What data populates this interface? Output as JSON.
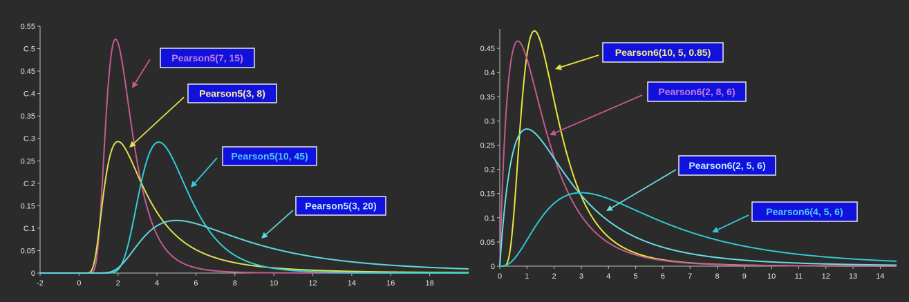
{
  "chart_data": [
    {
      "type": "line",
      "xlim": [
        -2,
        20
      ],
      "ylim": [
        0,
        0.55
      ],
      "x_ticks": [
        "-2",
        "0",
        "2",
        "4",
        "6",
        "8",
        "10",
        "12",
        "14",
        "16",
        "18"
      ],
      "y_ticks": [
        "0",
        "0.05",
        "C.1",
        "0.15",
        "C.2",
        "0.25",
        "C.3",
        "0.35",
        "C.4",
        "0.45",
        "C.5",
        "0.55"
      ],
      "grid": false,
      "series": [
        {
          "name": "Pearson5(7, 15)",
          "dist": "pearson5",
          "params": [
            7,
            15
          ],
          "color": "#c45a92",
          "label_text": "#c37ee8"
        },
        {
          "name": "Pearson5(3, 8)",
          "dist": "pearson5",
          "params": [
            3,
            8
          ],
          "color": "#e0e050",
          "label_text": "#fff1a0"
        },
        {
          "name": "Pearson5(10, 45)",
          "dist": "pearson5",
          "params": [
            10,
            45
          ],
          "color": "#30d0d8",
          "label_text": "#4ec8ff"
        },
        {
          "name": "Pearson5(3, 20)",
          "dist": "pearson5",
          "params": [
            3,
            20
          ],
          "color": "#60d8dc",
          "label_text": "#bfe6ff"
        }
      ]
    },
    {
      "type": "line",
      "xlim": [
        0,
        14.6
      ],
      "ylim": [
        0,
        0.49
      ],
      "x_ticks": [
        "0",
        "1",
        "2",
        "3",
        "4",
        "5",
        "6",
        "7",
        "8",
        "9",
        "10",
        "11",
        "12",
        "13",
        "14"
      ],
      "y_ticks": [
        "0",
        "0.05",
        "0.1",
        "0.15",
        "0.2",
        "0.25",
        "0.3",
        "0.35",
        "0.4",
        "0.45"
      ],
      "grid": false,
      "series": [
        {
          "name": "Pearson6(10, 5, 0.85)",
          "dist": "pearson6",
          "params": [
            10,
            5,
            0.85
          ],
          "color": "#e8e83c",
          "label_text": "#f4ee8a"
        },
        {
          "name": "Pearson6(2, 8, 6)",
          "dist": "pearson6",
          "params": [
            2,
            8,
            6
          ],
          "color": "#c45a92",
          "label_text": "#c37ee8"
        },
        {
          "name": "Pearson6(2, 5, 6)",
          "dist": "pearson6",
          "params": [
            2,
            5,
            6
          ],
          "color": "#66dde0",
          "label_text": "#bfe6ff"
        },
        {
          "name": "Pearson6(4, 5, 6)",
          "dist": "pearson6",
          "params": [
            4,
            5,
            6
          ],
          "color": "#30c8d0",
          "label_text": "#4ec8ff"
        }
      ]
    }
  ]
}
